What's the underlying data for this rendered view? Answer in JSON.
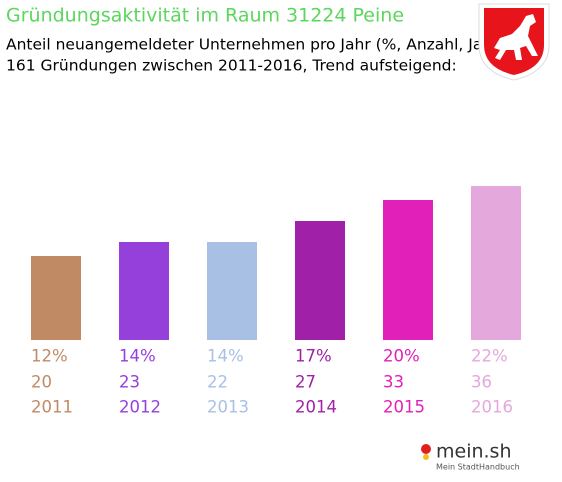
{
  "chart_data": {
    "type": "bar",
    "title": "Gründungsaktivität im Raum 31224 Peine",
    "subtitle": [
      "Anteil neuangemeldeter Unternehmen pro Jahr (%, Anzahl, Jahr)",
      "161 Gründungen zwischen 2011-2016, Trend aufsteigend:"
    ],
    "categories": [
      "2011",
      "2012",
      "2013",
      "2014",
      "2015",
      "2016"
    ],
    "values": [
      12,
      14,
      14,
      17,
      20,
      22
    ],
    "value_labels": [
      "12%",
      "14%",
      "14%",
      "17%",
      "20%",
      "22%"
    ],
    "counts": [
      20,
      23,
      22,
      27,
      33,
      36
    ],
    "colors": [
      "#c08a65",
      "#9640dc",
      "#a8c0e4",
      "#a020a8",
      "#e020b8",
      "#e4a8dc"
    ]
  },
  "branding": {
    "logo": "mein.sh",
    "tagline": "Mein StadtHandbuch"
  }
}
